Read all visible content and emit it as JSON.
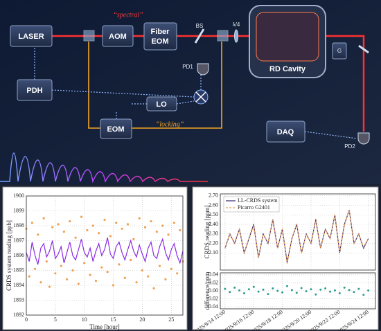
{
  "diagram": {
    "laser": "LASER",
    "aom": "AOM",
    "fiber_eom": [
      "Fiber",
      "EOM"
    ],
    "bs": "BS",
    "qwp": "λ/4",
    "cavity": "RD Cavity",
    "grating": "G",
    "pd1": "PD1",
    "pdh": "PDH",
    "lo": "LO",
    "eom": "EOM",
    "daq": "DAQ",
    "pd2": "PD2",
    "spectral": "“spectral”",
    "locking": "“locking”"
  },
  "chart_data": [
    {
      "type": "scatter",
      "xlabel": "Time [hour]",
      "ylabel": "CRDS system reading [ppb]",
      "x": [
        0,
        0.5,
        1,
        1.5,
        2,
        2.5,
        3,
        3.5,
        4,
        4.5,
        5,
        5.5,
        6,
        6.5,
        7,
        7.5,
        8,
        8.5,
        9,
        9.5,
        10,
        10.5,
        11,
        11.5,
        12,
        12.5,
        13,
        13.5,
        14,
        14.5,
        15,
        15.5,
        16,
        16.5,
        17,
        17.5,
        18,
        18.5,
        19,
        19.5,
        20,
        20.5,
        21,
        21.5,
        22,
        22.5,
        23,
        23.5,
        24,
        24.5,
        25,
        25.5,
        26,
        26.5,
        27
      ],
      "series": [
        {
          "color": "#f0a050",
          "mode": "markers",
          "values": [
            1897.8,
            1894.6,
            1898.2,
            1895.1,
            1897.4,
            1894.2,
            1898.5,
            1895.6,
            1893.9,
            1897.9,
            1894.8,
            1898.1,
            1895.3,
            1897.6,
            1894.4,
            1898.3,
            1895.0,
            1897.2,
            1894.1,
            1898.6,
            1895.5,
            1897.7,
            1894.7,
            1898.0,
            1894.3,
            1897.5,
            1895.2,
            1898.4,
            1894.9,
            1897.3,
            1894.0,
            1898.2,
            1895.4,
            1897.8,
            1894.5,
            1898.1,
            1895.7,
            1897.1,
            1894.2,
            1898.5,
            1895.0,
            1897.9,
            1894.6,
            1898.3,
            1893.8,
            1897.6,
            1895.3,
            1898.0,
            1894.4,
            1897.4,
            1895.1,
            1898.2,
            1894.8,
            1897.7,
            1895.6
          ]
        },
        {
          "color": "#8a2be2",
          "mode": "lines",
          "values": [
            1896.2,
            1895.6,
            1896.9,
            1896.0,
            1895.4,
            1896.5,
            1896.8,
            1895.9,
            1896.3,
            1897.0,
            1895.8,
            1896.1,
            1896.6,
            1895.5,
            1896.2,
            1896.9,
            1896.0,
            1895.7,
            1896.4,
            1897.1,
            1896.2,
            1895.9,
            1896.5,
            1895.6,
            1896.3,
            1896.8,
            1896.0,
            1896.4,
            1897.2,
            1896.1,
            1895.8,
            1896.6,
            1896.9,
            1896.2,
            1895.7,
            1896.4,
            1897.0,
            1896.3,
            1895.9,
            1896.7,
            1896.1,
            1895.6,
            1896.5,
            1896.9,
            1896.0,
            1895.8,
            1896.6,
            1897.1,
            1896.2,
            1895.7,
            1896.4,
            1896.8,
            1896.0,
            1895.5,
            1896.3
          ]
        }
      ],
      "xlim": [
        0,
        27
      ],
      "xticks": [
        0,
        5,
        10,
        15,
        20,
        25
      ],
      "ylim": [
        1892,
        1900
      ],
      "yticks": [
        1892,
        1893,
        1894,
        1895,
        1896,
        1897,
        1898,
        1899,
        1900
      ],
      "grid": true
    },
    {
      "type": "line",
      "ylabel": "CRDS reading [ppm]",
      "legend": "upper left",
      "x": [
        "2025/9/14 12:00",
        "2025/9/14 20:00",
        "2025/9/15 04:00",
        "2025/9/15 12:00",
        "2025/9/15 20:00",
        "2025/9/16 04:00",
        "2025/9/16 12:00",
        "2025/9/16 20:00",
        "2025/9/17 04:00",
        "2025/9/17 12:00",
        "2025/9/17 20:00",
        "2025/9/18 04:00",
        "2025/9/18 12:00",
        "2025/9/18 20:00",
        "2025/9/19 04:00",
        "2025/9/19 12:00",
        "2025/9/19 20:00",
        "2025/9/20 04:00",
        "2025/9/20 12:00",
        "2025/9/20 20:00",
        "2025/9/21 04:00",
        "2025/9/21 12:00",
        "2025/9/21 20:00",
        "2025/9/22 04:00",
        "2025/9/22 12:00",
        "2025/9/22 20:00",
        "2025/9/23 04:00",
        "2025/9/23 12:00",
        "2025/9/23 20:00",
        "2025/9/24 04:00",
        "2025/9/24 12:00"
      ],
      "series": [
        {
          "name": "LL-CRDS system",
          "color": "#3a2a6a",
          "dash": false,
          "values": [
            2.15,
            2.3,
            2.2,
            2.35,
            2.1,
            2.25,
            2.4,
            2.05,
            2.3,
            2.2,
            2.45,
            2.15,
            2.35,
            2.0,
            2.25,
            2.4,
            2.1,
            2.3,
            2.2,
            2.45,
            2.15,
            2.35,
            2.25,
            2.5,
            2.1,
            2.4,
            2.55,
            2.2,
            2.3,
            2.15,
            2.25
          ]
        },
        {
          "name": "Picarro G2401",
          "color": "#f0a050",
          "dash": true,
          "values": [
            2.145,
            2.303,
            2.192,
            2.349,
            2.106,
            2.246,
            2.39,
            2.052,
            2.297,
            2.208,
            2.444,
            2.15,
            2.354,
            1.988,
            2.248,
            2.405,
            2.093,
            2.301,
            2.196,
            2.459,
            2.147,
            2.344,
            2.252,
            2.499,
            2.106,
            2.392,
            2.548,
            2.203,
            2.295,
            2.16,
            2.249
          ]
        }
      ],
      "xlim": [
        "2025/9/14 04:00",
        "2025/9/25 00:00"
      ],
      "ylim": [
        1.92,
        2.72
      ],
      "yticks": [
        {
          "value": 2.1,
          "label": "2.10"
        },
        {
          "value": 2.2,
          "label": "2.20"
        },
        {
          "value": 2.3,
          "label": "2.30"
        },
        {
          "value": 2.4,
          "label": "2.40"
        },
        {
          "value": 2.5,
          "label": "2.50"
        },
        {
          "value": 2.6,
          "label": "2.60"
        },
        {
          "value": 2.7,
          "label": "2.70"
        }
      ],
      "grid": true
    },
    {
      "type": "scatter",
      "ylabel": "difference/ppm",
      "x": [
        "2025/9/14 12:00",
        "2025/9/14 20:00",
        "2025/9/15 04:00",
        "2025/9/15 12:00",
        "2025/9/15 20:00",
        "2025/9/16 04:00",
        "2025/9/16 12:00",
        "2025/9/16 20:00",
        "2025/9/17 04:00",
        "2025/9/17 12:00",
        "2025/9/17 20:00",
        "2025/9/18 04:00",
        "2025/9/18 12:00",
        "2025/9/18 20:00",
        "2025/9/19 04:00",
        "2025/9/19 12:00",
        "2025/9/19 20:00",
        "2025/9/20 04:00",
        "2025/9/20 12:00",
        "2025/9/20 20:00",
        "2025/9/21 04:00",
        "2025/9/21 12:00",
        "2025/9/21 20:00",
        "2025/9/22 04:00",
        "2025/9/22 12:00",
        "2025/9/22 20:00",
        "2025/9/23 04:00",
        "2025/9/23 12:00",
        "2025/9/23 20:00",
        "2025/9/24 04:00",
        "2025/9/24 12:00"
      ],
      "series": [
        {
          "color": "#2a9d8f",
          "mode": "markers",
          "values": [
            0.005,
            -0.003,
            0.008,
            0.001,
            -0.006,
            0.004,
            0.01,
            -0.002,
            0.003,
            -0.008,
            0.006,
            0.0,
            -0.004,
            0.012,
            0.002,
            -0.005,
            0.007,
            -0.001,
            0.004,
            -0.009,
            0.003,
            0.006,
            -0.002,
            0.001,
            -0.006,
            0.008,
            0.002,
            -0.003,
            0.005,
            -0.01,
            0.001
          ]
        }
      ],
      "xlim": [
        "2025/9/14 04:00",
        "2025/9/25 00:00"
      ],
      "xticks": [
        {
          "value": "2025/9/14 12:00",
          "label": "2025/9/14 12:00"
        },
        {
          "value": "2025/9/16 12:00",
          "label": "2025/9/16 12:00"
        },
        {
          "value": "2025/9/18 12:00",
          "label": "2025/9/18 12:00"
        },
        {
          "value": "2025/9/20 12:00",
          "label": "2025/9/20 12:00"
        },
        {
          "value": "2025/9/22 12:00",
          "label": "2025/9/22 12:00"
        },
        {
          "value": "2025/9/24 12:00",
          "label": "2025/9/24 12:00"
        }
      ],
      "ylim": [
        -0.045,
        0.045
      ],
      "yticks": [
        {
          "value": -0.04,
          "label": "-0.04"
        },
        {
          "value": -0.02,
          "label": "-0.02"
        },
        {
          "value": 0,
          "label": "0.00"
        },
        {
          "value": 0.02,
          "label": "0.02"
        },
        {
          "value": 0.04,
          "label": "0.04"
        }
      ],
      "grid": true
    }
  ]
}
